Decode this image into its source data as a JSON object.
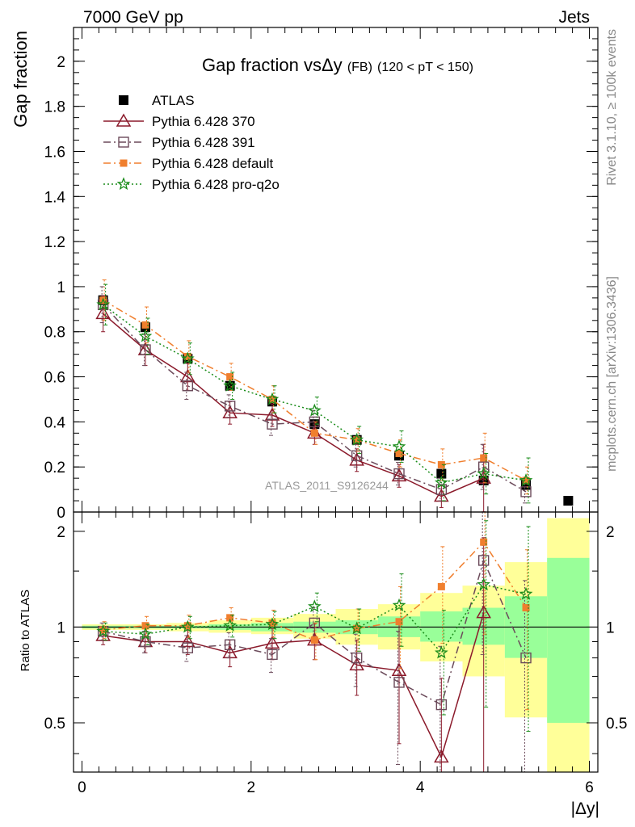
{
  "header": {
    "left": "7000 GeV pp",
    "right": "Jets"
  },
  "side_labels": {
    "top": "Rivet 3.1.10, ≥ 100k events",
    "bottom": "mcplots.cern.ch [arXiv:1306.3436]"
  },
  "colors": {
    "atlas": "#000000",
    "p370": "#8b1a2b",
    "p391": "#6b4a5a",
    "pdefault": "#f07f2e",
    "pq2o": "#1a8c1a",
    "band_inner": "#99ff99",
    "band_outer": "#ffff99"
  },
  "chart_data": [
    {
      "type": "scatter",
      "title": "Gap fraction vsΔy",
      "title_suffix": "(FB)",
      "title_cut": "(120 < pT < 150)",
      "ylabel": "Gap fraction",
      "watermark": "ATLAS_2011_S9126244",
      "xlim": [
        -0.1,
        6.1
      ],
      "ylim": [
        0,
        2.15
      ],
      "yticks": [
        "0",
        "0.2",
        "0.4",
        "0.6",
        "0.8",
        "1",
        "1.2",
        "1.4",
        "1.6",
        "1.8",
        "2"
      ],
      "legend_position": "top-left",
      "x": [
        0.25,
        0.75,
        1.25,
        1.75,
        2.25,
        2.75,
        3.25,
        3.75,
        4.25,
        4.75,
        5.25,
        5.75
      ],
      "series": [
        {
          "name": "ATLAS",
          "key": "atlas",
          "marker": "filled-square",
          "line": "none",
          "values": [
            0.94,
            0.82,
            0.68,
            0.56,
            0.49,
            0.39,
            0.32,
            0.25,
            0.17,
            0.14,
            0.12,
            0.05
          ]
        },
        {
          "name": "Pythia 6.428 370",
          "key": "p370",
          "marker": "open-triangle",
          "line": "solid",
          "values": [
            0.88,
            0.72,
            0.6,
            0.44,
            0.43,
            0.35,
            0.23,
            0.16,
            0.07,
            0.15
          ],
          "errors": [
            0.08,
            0.07,
            0.06,
            0.05,
            0.05,
            0.05,
            0.05,
            0.05,
            0.05,
            0.15
          ]
        },
        {
          "name": "Pythia 6.428 391",
          "key": "p391",
          "marker": "open-square",
          "line": "dashdot",
          "values": [
            0.92,
            0.72,
            0.56,
            0.47,
            0.39,
            0.4,
            0.25,
            0.17,
            0.1,
            0.2,
            0.09
          ],
          "errors": [
            0.08,
            0.07,
            0.06,
            0.05,
            0.05,
            0.05,
            0.05,
            0.05,
            0.05,
            0.1,
            0.05
          ]
        },
        {
          "name": "Pythia 6.428 default",
          "key": "pdefault",
          "marker": "filled-small-square",
          "line": "dashdot",
          "values": [
            0.94,
            0.83,
            0.69,
            0.6,
            0.5,
            0.35,
            0.32,
            0.26,
            0.21,
            0.24,
            0.14
          ],
          "errors": [
            0.09,
            0.08,
            0.07,
            0.06,
            0.06,
            0.05,
            0.05,
            0.06,
            0.07,
            0.11,
            0.06
          ]
        },
        {
          "name": "Pythia 6.428 pro-q2o",
          "key": "pq2o",
          "marker": "star",
          "line": "dotted",
          "values": [
            0.92,
            0.78,
            0.68,
            0.56,
            0.5,
            0.45,
            0.32,
            0.29,
            0.13,
            0.17,
            0.14
          ],
          "errors": [
            0.09,
            0.08,
            0.07,
            0.06,
            0.06,
            0.06,
            0.06,
            0.07,
            0.08,
            0.09,
            0.1
          ]
        }
      ]
    },
    {
      "type": "scatter",
      "ylabel": "Ratio to ATLAS",
      "xlabel": "|Δy|",
      "xlim": [
        -0.1,
        6.1
      ],
      "ylim": [
        0.35,
        2.3
      ],
      "xticks": [
        "0",
        "2",
        "4",
        "6"
      ],
      "yticks": [
        "0.5",
        "1",
        "2"
      ],
      "bands": {
        "edges": [
          0.0,
          0.5,
          1.0,
          1.5,
          2.0,
          2.5,
          3.0,
          3.5,
          4.0,
          4.5,
          5.0,
          5.5,
          6.0
        ],
        "inner_lo": [
          0.99,
          0.99,
          0.99,
          0.98,
          0.97,
          0.96,
          0.95,
          0.93,
          0.9,
          0.88,
          0.8,
          0.5
        ],
        "inner_hi": [
          1.01,
          1.01,
          1.01,
          1.02,
          1.03,
          1.04,
          1.05,
          1.08,
          1.12,
          1.15,
          1.25,
          1.65
        ],
        "outer_lo": [
          0.98,
          0.98,
          0.97,
          0.96,
          0.95,
          0.92,
          0.88,
          0.85,
          0.78,
          0.7,
          0.52,
          0.35
        ],
        "outer_hi": [
          1.02,
          1.02,
          1.03,
          1.05,
          1.07,
          1.1,
          1.14,
          1.18,
          1.28,
          1.35,
          1.6,
          2.2
        ]
      },
      "x": [
        0.25,
        0.75,
        1.25,
        1.75,
        2.25,
        2.75,
        3.25,
        3.75,
        4.25,
        4.75,
        5.25
      ],
      "series": [
        {
          "name": "Pythia 6.428 370",
          "key": "p370",
          "marker": "open-triangle",
          "line": "solid",
          "values": [
            0.94,
            0.9,
            0.9,
            0.83,
            0.89,
            0.91,
            0.76,
            0.73,
            0.39,
            1.11
          ],
          "errors": [
            0.06,
            0.07,
            0.08,
            0.08,
            0.1,
            0.12,
            0.15,
            0.3,
            0.3,
            0.8
          ]
        },
        {
          "name": "Pythia 6.428 391",
          "key": "p391",
          "marker": "open-square",
          "line": "dashdot",
          "values": [
            0.97,
            0.9,
            0.86,
            0.88,
            0.82,
            1.03,
            0.8,
            0.67,
            0.57,
            1.62,
            0.8
          ],
          "errors": [
            0.06,
            0.07,
            0.08,
            0.08,
            0.1,
            0.12,
            0.15,
            0.3,
            0.3,
            0.8,
            0.6
          ]
        },
        {
          "name": "Pythia 6.428 default",
          "key": "pdefault",
          "marker": "filled-small-square",
          "line": "dashdot",
          "values": [
            0.98,
            1.01,
            1.01,
            1.07,
            1.03,
            0.91,
            0.99,
            1.04,
            1.34,
            1.85,
            1.15
          ],
          "errors": [
            0.06,
            0.07,
            0.08,
            0.08,
            0.1,
            0.12,
            0.15,
            0.3,
            0.45,
            0.9,
            0.6
          ]
        },
        {
          "name": "Pythia 6.428 pro-q2o",
          "key": "pq2o",
          "marker": "star",
          "line": "dotted",
          "values": [
            0.97,
            0.95,
            1.0,
            1.01,
            1.02,
            1.16,
            0.99,
            1.17,
            0.83,
            1.36,
            1.27
          ],
          "errors": [
            0.06,
            0.07,
            0.08,
            0.08,
            0.1,
            0.12,
            0.15,
            0.3,
            0.3,
            0.8,
            0.8
          ]
        }
      ]
    }
  ]
}
